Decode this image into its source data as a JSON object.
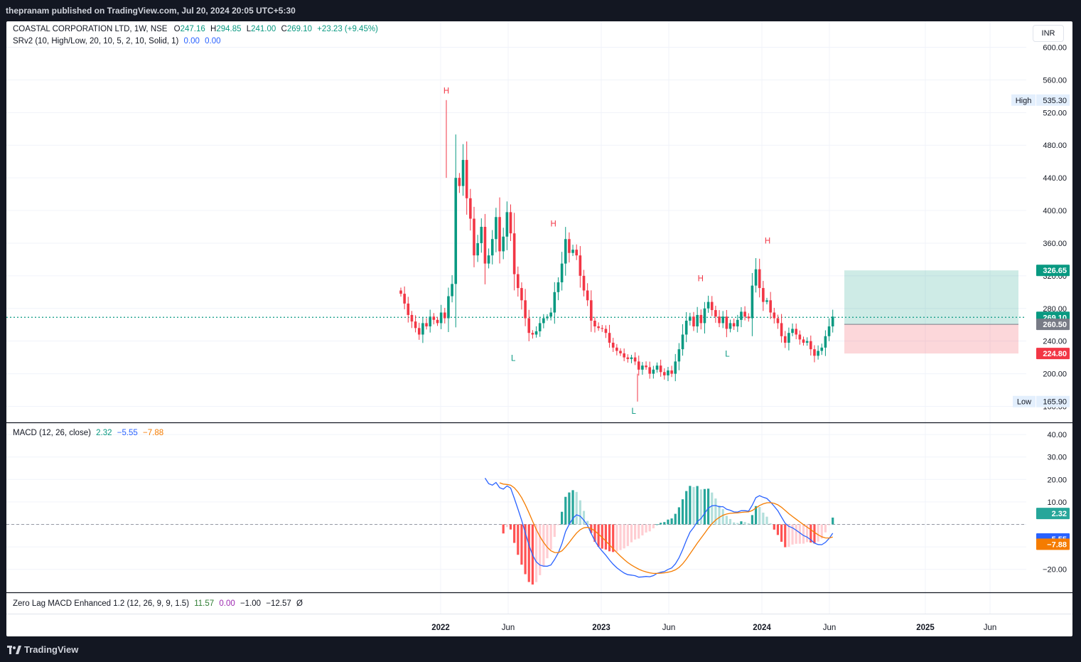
{
  "header": {
    "published": "thepranam published on TradingView.com, Jul 20, 2024 20:05 UTC+5:30"
  },
  "footer": {
    "brand": "TradingView"
  },
  "currency": "INR",
  "legend": {
    "symbol": "COASTAL CORPORATION LTD, 1W, NSE",
    "o_label": "O",
    "o": "247.16",
    "h_label": "H",
    "h": "294.85",
    "l_label": "L",
    "l": "241.00",
    "c_label": "C",
    "c": "269.10",
    "change": "+23.23 (+9.45%)",
    "srv2": "SRv2 (10, High/Low, 20, 10, 5, 2, 10, Solid, 1)",
    "srv2_v1": "0.00",
    "srv2_v2": "0.00"
  },
  "macd_legend": {
    "name": "MACD (12, 26, close)",
    "hist": "2.32",
    "macd": "−5.55",
    "signal": "−7.88"
  },
  "zl_legend": {
    "name": "Zero Lag MACD Enhanced 1.2 (12, 26, 9, 9, 1.5)",
    "v1": "11.57",
    "v2": "0.00",
    "v3": "−1.00",
    "v4": "−12.57",
    "v5": "Ø"
  },
  "colors": {
    "up": "#089981",
    "down": "#f23645",
    "macd": "#2962ff",
    "signal": "#f57c00"
  },
  "chart_data": [
    {
      "type": "candlestick",
      "title": "COASTAL CORPORATION LTD, 1W, NSE",
      "ylim": [
        160,
        610
      ],
      "y_ticks": [
        "600.00",
        "560.00",
        "520.00",
        "480.00",
        "440.00",
        "400.00",
        "360.00",
        "320.00",
        "280.00",
        "240.00",
        "200.00",
        "160.00"
      ],
      "x_ticks": [
        "2022",
        "Jun",
        "2023",
        "Jun",
        "2024",
        "Jun",
        "2025",
        "Jun"
      ],
      "price_labels": [
        {
          "text": "High",
          "value": "535.30"
        },
        {
          "text": "",
          "value": "326.65"
        },
        {
          "text": "",
          "value": "269.10"
        },
        {
          "text": "",
          "value": "260.50"
        },
        {
          "text": "",
          "value": "224.80"
        },
        {
          "text": "Low",
          "value": "165.90"
        }
      ],
      "swing_labels": [
        {
          "label": "H",
          "price": 540,
          "date": "2022-01"
        },
        {
          "label": "L",
          "price": 228,
          "date": "2022-06"
        },
        {
          "label": "H",
          "price": 377,
          "date": "2022-09"
        },
        {
          "label": "L",
          "price": 163,
          "date": "2023-03"
        },
        {
          "label": "H",
          "price": 310,
          "date": "2023-08"
        },
        {
          "label": "L",
          "price": 233,
          "date": "2023-10"
        },
        {
          "label": "H",
          "price": 356,
          "date": "2024-01"
        }
      ],
      "position": {
        "target": 326.65,
        "entry": 260.5,
        "stop": 224.8
      },
      "last_close": 269.1,
      "closes": [
        298,
        286,
        272,
        264,
        256,
        248,
        262,
        258,
        270,
        266,
        262,
        275,
        268,
        295,
        310,
        440,
        430,
        462,
        415,
        390,
        345,
        360,
        380,
        335,
        345,
        365,
        392,
        350,
        368,
        398,
        372,
        322,
        305,
        290,
        268,
        250,
        248,
        252,
        262,
        268,
        270,
        275,
        300,
        312,
        335,
        365,
        348,
        352,
        345,
        320,
        302,
        290,
        265,
        258,
        256,
        255,
        250,
        238,
        232,
        228,
        225,
        220,
        218,
        220,
        215,
        205,
        210,
        208,
        200,
        205,
        210,
        202,
        198,
        204,
        200,
        215,
        230,
        248,
        265,
        270,
        258,
        272,
        262,
        280,
        288,
        278,
        270,
        262,
        270,
        255,
        262,
        258,
        266,
        276,
        270,
        268,
        308,
        328,
        305,
        288,
        290,
        275,
        268,
        262,
        246,
        238,
        250,
        255,
        248,
        242,
        238,
        240,
        230,
        222,
        228,
        232,
        246,
        258,
        270
      ]
    },
    {
      "type": "macd",
      "title": "MACD (12, 26, close)",
      "ylim": [
        -30,
        44
      ],
      "y_ticks": [
        "40.00",
        "30.00",
        "20.00",
        "10.00",
        "0",
        "−10.00",
        "−20.00"
      ],
      "values": {
        "histogram": 2.32,
        "macd": -5.55,
        "signal": -7.88
      },
      "labels": [
        "2.32",
        "−5.55",
        "−7.88"
      ]
    }
  ]
}
